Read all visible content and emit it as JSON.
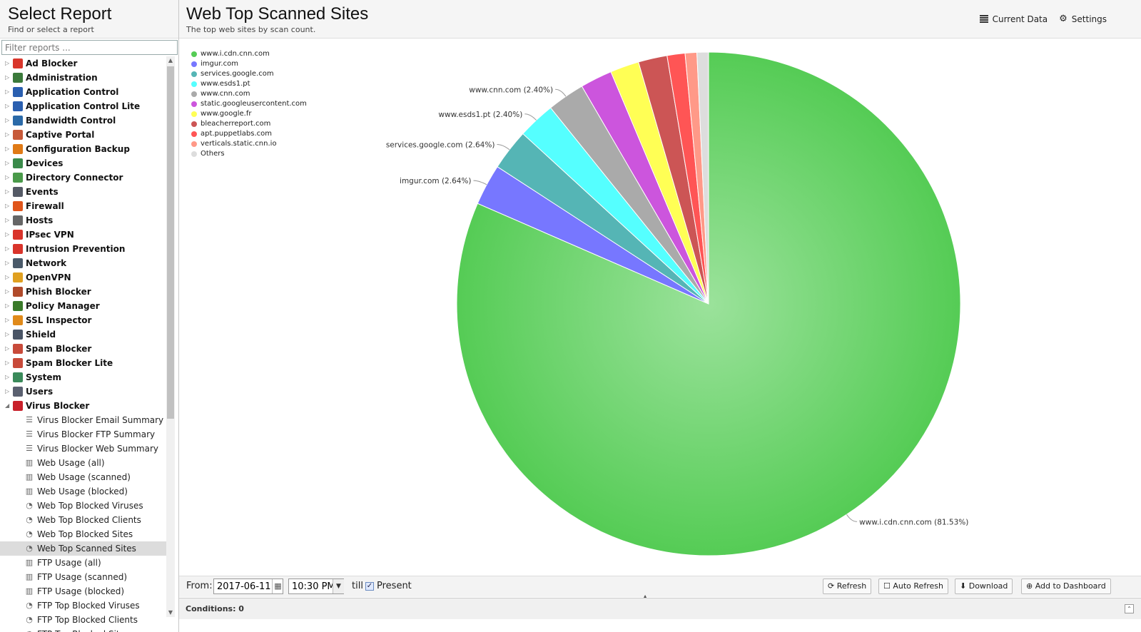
{
  "left": {
    "title": "Select Report",
    "subtitle": "Find or select a report",
    "filter_placeholder": "Filter reports ...",
    "categories": [
      {
        "label": "Ad Blocker",
        "icon": "ad-blocker-icon",
        "color": "#d9362b"
      },
      {
        "label": "Administration",
        "icon": "administration-icon",
        "color": "#3b7a3b"
      },
      {
        "label": "Application Control",
        "icon": "application-control-icon",
        "color": "#2a5fb0"
      },
      {
        "label": "Application Control Lite",
        "icon": "application-control-lite-icon",
        "color": "#2a5fb0"
      },
      {
        "label": "Bandwidth Control",
        "icon": "bandwidth-control-icon",
        "color": "#2b6aa8"
      },
      {
        "label": "Captive Portal",
        "icon": "captive-portal-icon",
        "color": "#c75a3a"
      },
      {
        "label": "Configuration Backup",
        "icon": "configuration-backup-icon",
        "color": "#e07a16"
      },
      {
        "label": "Devices",
        "icon": "devices-icon",
        "color": "#3a8a4a"
      },
      {
        "label": "Directory Connector",
        "icon": "directory-connector-icon",
        "color": "#4a9a4a"
      },
      {
        "label": "Events",
        "icon": "events-icon",
        "color": "#555a66"
      },
      {
        "label": "Firewall",
        "icon": "firewall-icon",
        "color": "#e0551b"
      },
      {
        "label": "Hosts",
        "icon": "hosts-icon",
        "color": "#666666"
      },
      {
        "label": "IPsec VPN",
        "icon": "ipsec-vpn-icon",
        "color": "#d9342b"
      },
      {
        "label": "Intrusion Prevention",
        "icon": "intrusion-prevention-icon",
        "color": "#d9342b"
      },
      {
        "label": "Network",
        "icon": "network-icon",
        "color": "#4a5a6a"
      },
      {
        "label": "OpenVPN",
        "icon": "openvpn-icon",
        "color": "#e0a020"
      },
      {
        "label": "Phish Blocker",
        "icon": "phish-blocker-icon",
        "color": "#b04a2a"
      },
      {
        "label": "Policy Manager",
        "icon": "policy-manager-icon",
        "color": "#3a7a2a"
      },
      {
        "label": "SSL Inspector",
        "icon": "ssl-inspector-icon",
        "color": "#e08a1a"
      },
      {
        "label": "Shield",
        "icon": "shield-icon",
        "color": "#4a5566"
      },
      {
        "label": "Spam Blocker",
        "icon": "spam-blocker-icon",
        "color": "#c84a3a"
      },
      {
        "label": "Spam Blocker Lite",
        "icon": "spam-blocker-lite-icon",
        "color": "#c84a3a"
      },
      {
        "label": "System",
        "icon": "system-icon",
        "color": "#3a8a5a"
      },
      {
        "label": "Users",
        "icon": "users-icon",
        "color": "#5a6070"
      },
      {
        "label": "Virus Blocker",
        "icon": "virus-blocker-icon",
        "color": "#c8202a",
        "expanded": true
      }
    ],
    "virus_blocker_reports": [
      {
        "label": "Virus Blocker Email Summary",
        "icon": "summary-icon"
      },
      {
        "label": "Virus Blocker FTP Summary",
        "icon": "summary-icon"
      },
      {
        "label": "Virus Blocker Web Summary",
        "icon": "summary-icon"
      },
      {
        "label": "Web Usage (all)",
        "icon": "bar-chart-icon"
      },
      {
        "label": "Web Usage (scanned)",
        "icon": "bar-chart-icon"
      },
      {
        "label": "Web Usage (blocked)",
        "icon": "bar-chart-icon"
      },
      {
        "label": "Web Top Blocked Viruses",
        "icon": "pie-chart-icon"
      },
      {
        "label": "Web Top Blocked Clients",
        "icon": "pie-chart-icon"
      },
      {
        "label": "Web Top Blocked Sites",
        "icon": "pie-chart-icon"
      },
      {
        "label": "Web Top Scanned Sites",
        "icon": "pie-chart-icon",
        "selected": true
      },
      {
        "label": "FTP Usage (all)",
        "icon": "bar-chart-icon"
      },
      {
        "label": "FTP Usage (scanned)",
        "icon": "bar-chart-icon"
      },
      {
        "label": "FTP Usage (blocked)",
        "icon": "bar-chart-icon"
      },
      {
        "label": "FTP Top Blocked Viruses",
        "icon": "pie-chart-icon"
      },
      {
        "label": "FTP Top Blocked Clients",
        "icon": "pie-chart-icon"
      },
      {
        "label": "FTP Top Blocked Sites",
        "icon": "pie-chart-icon"
      }
    ]
  },
  "main": {
    "title": "Web Top Scanned Sites",
    "subtitle": "The top web sites by scan count.",
    "current_data_label": "Current Data",
    "settings_label": "Settings"
  },
  "toolbar": {
    "from_label": "From:",
    "date_value": "2017-06-11",
    "time_value": "10:30 PM",
    "till_label": "till",
    "present_label": "Present",
    "present_checked": true,
    "refresh_label": "Refresh",
    "auto_refresh_label": "Auto Refresh",
    "download_label": "Download",
    "add_dashboard_label": "Add to Dashboard"
  },
  "conditions": {
    "label": "Conditions: 0"
  },
  "chart_data": {
    "type": "pie",
    "title": "",
    "legend_position": "top-left",
    "slices": [
      {
        "label": "www.i.cdn.cnn.com",
        "percent": 81.53,
        "color": "#55cc55",
        "data_label": "www.i.cdn.cnn.com (81.53%)"
      },
      {
        "label": "imgur.com",
        "percent": 2.64,
        "color": "#7777ff",
        "data_label": "imgur.com (2.64%)"
      },
      {
        "label": "services.google.com",
        "percent": 2.64,
        "color": "#55b5b5",
        "data_label": "services.google.com (2.64%)"
      },
      {
        "label": "www.esds1.pt",
        "percent": 2.4,
        "color": "#55ffff",
        "data_label": "www.esds1.pt (2.40%)"
      },
      {
        "label": "www.cnn.com",
        "percent": 2.4,
        "color": "#aaaaaa",
        "data_label": "www.cnn.com (2.40%)"
      },
      {
        "label": "static.googleusercontent.com",
        "percent": 2.05,
        "color": "#cc55dd",
        "data_label": ""
      },
      {
        "label": "www.google.fr",
        "percent": 1.85,
        "color": "#ffff55",
        "data_label": ""
      },
      {
        "label": "bleacherreport.com",
        "percent": 1.85,
        "color": "#cc5555",
        "data_label": ""
      },
      {
        "label": "apt.puppetlabs.com",
        "percent": 1.15,
        "color": "#ff5555",
        "data_label": ""
      },
      {
        "label": "verticals.static.cnn.io",
        "percent": 0.75,
        "color": "#ff9988",
        "data_label": ""
      },
      {
        "label": "Others",
        "percent": 0.74,
        "color": "#dddddd",
        "data_label": ""
      }
    ]
  }
}
